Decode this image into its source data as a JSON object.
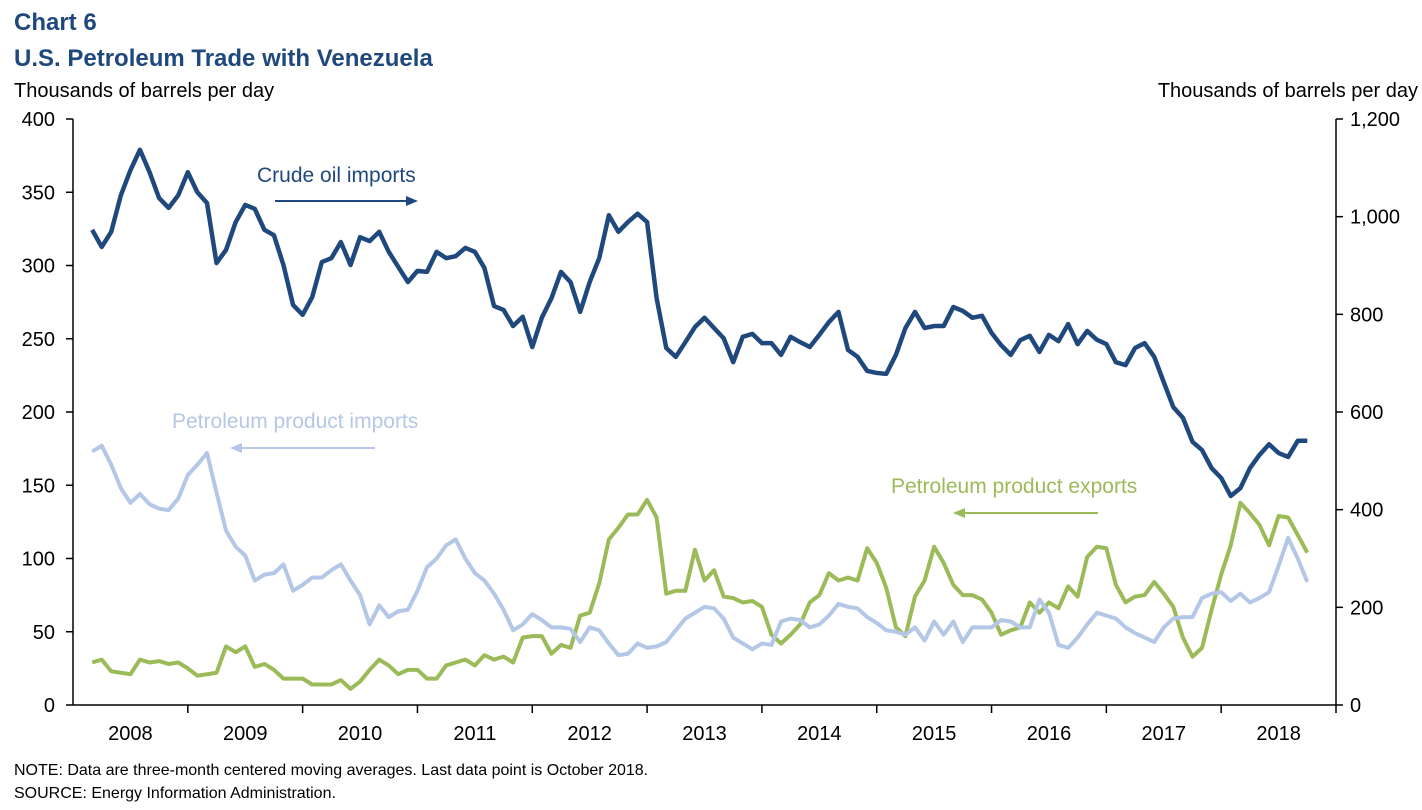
{
  "chart_data": {
    "type": "line",
    "title": "Chart 6",
    "subtitle": "U.S. Petroleum Trade with Venezuela",
    "ylabel": "Thousands of barrels per day",
    "y2label": "Thousands of barrels per day",
    "notes": [
      "NOTE: Data are three-month centered moving averages. Last data point is October 2018.",
      "SOURCE: Energy Information Administration."
    ],
    "xlim": [
      2008,
      2019
    ],
    "xticks": [
      {
        "value": 2008.5,
        "label": "2008"
      },
      {
        "value": 2009.5,
        "label": "2009"
      },
      {
        "value": 2010.5,
        "label": "2010"
      },
      {
        "value": 2011.5,
        "label": "2011"
      },
      {
        "value": 2012.5,
        "label": "2012"
      },
      {
        "value": 2013.5,
        "label": "2013"
      },
      {
        "value": 2014.5,
        "label": "2014"
      },
      {
        "value": 2015.5,
        "label": "2015"
      },
      {
        "value": 2016.5,
        "label": "2016"
      },
      {
        "value": 2017.5,
        "label": "2017"
      },
      {
        "value": 2018.5,
        "label": "2018"
      }
    ],
    "ylim": [
      0,
      400
    ],
    "yticks": [
      0,
      50,
      100,
      150,
      200,
      250,
      300,
      350,
      400
    ],
    "y2lim": [
      0,
      1200
    ],
    "y2ticks": [
      0,
      200,
      400,
      600,
      800,
      {
        "value": 1000,
        "label": "1,000"
      },
      {
        "value": 1200,
        "label": "1,200"
      }
    ],
    "grid": false,
    "x": [
      2008.167,
      2008.25,
      2008.333,
      2008.417,
      2008.5,
      2008.583,
      2008.667,
      2008.75,
      2008.833,
      2008.917,
      2009,
      2009.083,
      2009.167,
      2009.25,
      2009.333,
      2009.417,
      2009.5,
      2009.583,
      2009.667,
      2009.75,
      2009.833,
      2009.917,
      2010,
      2010.083,
      2010.167,
      2010.25,
      2010.333,
      2010.417,
      2010.5,
      2010.583,
      2010.667,
      2010.75,
      2010.833,
      2010.917,
      2011,
      2011.083,
      2011.167,
      2011.25,
      2011.333,
      2011.417,
      2011.5,
      2011.583,
      2011.667,
      2011.75,
      2011.833,
      2011.917,
      2012,
      2012.083,
      2012.167,
      2012.25,
      2012.333,
      2012.417,
      2012.5,
      2012.583,
      2012.667,
      2012.75,
      2012.833,
      2012.917,
      2013,
      2013.083,
      2013.167,
      2013.25,
      2013.333,
      2013.417,
      2013.5,
      2013.583,
      2013.667,
      2013.75,
      2013.833,
      2013.917,
      2014,
      2014.083,
      2014.167,
      2014.25,
      2014.333,
      2014.417,
      2014.5,
      2014.583,
      2014.667,
      2014.75,
      2014.833,
      2014.917,
      2015,
      2015.083,
      2015.167,
      2015.25,
      2015.333,
      2015.417,
      2015.5,
      2015.583,
      2015.667,
      2015.75,
      2015.833,
      2015.917,
      2016,
      2016.083,
      2016.167,
      2016.25,
      2016.333,
      2016.417,
      2016.5,
      2016.583,
      2016.667,
      2016.75,
      2016.833,
      2016.917,
      2017,
      2017.083,
      2017.167,
      2017.25,
      2017.333,
      2017.417,
      2017.5,
      2017.583,
      2017.667,
      2017.75,
      2017.833,
      2017.917,
      2018,
      2018.083,
      2018.167,
      2018.25,
      2018.333,
      2018.417,
      2018.5,
      2018.583,
      2018.667,
      2018.75
    ],
    "series": [
      {
        "name": "Crude oil imports",
        "color": "#1f497d",
        "axis": "y2",
        "values": [
          973,
          938,
          969,
          1044,
          1095,
          1137,
          1091,
          1038,
          1018,
          1044,
          1091,
          1050,
          1028,
          905,
          932,
          989,
          1024,
          1016,
          973,
          962,
          901,
          819,
          799,
          835,
          907,
          915,
          948,
          901,
          958,
          950,
          969,
          928,
          897,
          866,
          889,
          887,
          928,
          915,
          919,
          936,
          928,
          895,
          817,
          809,
          776,
          795,
          733,
          793,
          833,
          887,
          866,
          805,
          866,
          915,
          1003,
          969,
          989,
          1006,
          989,
          833,
          731,
          713,
          743,
          774,
          793,
          772,
          751,
          702,
          754,
          760,
          741,
          741,
          717,
          754,
          743,
          733,
          758,
          784,
          805,
          727,
          713,
          684,
          680,
          678,
          717,
          772,
          805,
          772,
          776,
          776,
          815,
          807,
          793,
          797,
          762,
          737,
          717,
          747,
          756,
          723,
          758,
          745,
          780,
          739,
          766,
          748,
          739,
          702,
          696,
          731,
          741,
          713,
          661,
          610,
          588,
          539,
          522,
          485,
          465,
          428,
          444,
          485,
          512,
          534,
          516,
          508,
          541,
          541
        ]
      },
      {
        "name": "Petroleum product imports",
        "color": "#b4c7e7",
        "values": [
          173,
          177,
          164,
          148,
          138,
          144,
          137,
          134,
          133,
          141,
          157,
          164,
          172,
          145,
          119,
          108,
          102,
          85,
          89,
          90,
          96,
          78,
          82,
          87,
          87,
          92,
          96,
          85,
          75,
          55,
          68,
          60,
          64,
          65,
          78,
          94,
          100,
          109,
          113,
          100,
          90,
          85,
          76,
          65,
          51,
          55,
          62,
          58,
          53,
          53,
          52,
          43,
          53,
          51,
          42,
          34,
          35,
          42,
          39,
          40,
          43,
          51,
          59,
          63,
          67,
          66,
          59,
          46,
          42,
          38,
          42,
          41,
          57,
          59,
          58,
          53,
          55,
          61,
          69,
          67,
          66,
          60,
          56,
          51,
          50,
          48,
          53,
          44,
          57,
          48,
          57,
          43,
          53,
          53,
          53,
          58,
          57,
          53,
          53,
          72,
          63,
          41,
          39,
          46,
          55,
          63,
          61,
          59,
          53,
          49,
          46,
          43,
          53,
          59,
          60,
          60,
          73,
          76,
          77,
          71,
          76,
          70,
          73,
          77,
          95,
          114,
          100,
          84
        ]
      },
      {
        "name": "Petroleum product exports",
        "color": "#9bbb59",
        "values": [
          29,
          31,
          23,
          22,
          21,
          31,
          29,
          30,
          28,
          29,
          25,
          20,
          21,
          22,
          40,
          36,
          40,
          26,
          28,
          24,
          18,
          18,
          18,
          14,
          14,
          14,
          17,
          11,
          16,
          24,
          31,
          27,
          21,
          24,
          24,
          18,
          18,
          27,
          29,
          31,
          27,
          34,
          31,
          33,
          29,
          46,
          47,
          47,
          35,
          41,
          39,
          61,
          63,
          83,
          113,
          121,
          130,
          130,
          140,
          128,
          76,
          78,
          78,
          106,
          85,
          92,
          74,
          73,
          70,
          71,
          67,
          48,
          42,
          48,
          55,
          70,
          75,
          90,
          85,
          87,
          85,
          107,
          97,
          80,
          53,
          47,
          74,
          85,
          108,
          97,
          82,
          75,
          75,
          72,
          63,
          48,
          51,
          53,
          70,
          63,
          70,
          66,
          81,
          74,
          101,
          108,
          107,
          82,
          70,
          74,
          75,
          84,
          76,
          67,
          46,
          33,
          39,
          65,
          89,
          109,
          138,
          131,
          123,
          109,
          129,
          128,
          116,
          104
        ]
      }
    ]
  }
}
